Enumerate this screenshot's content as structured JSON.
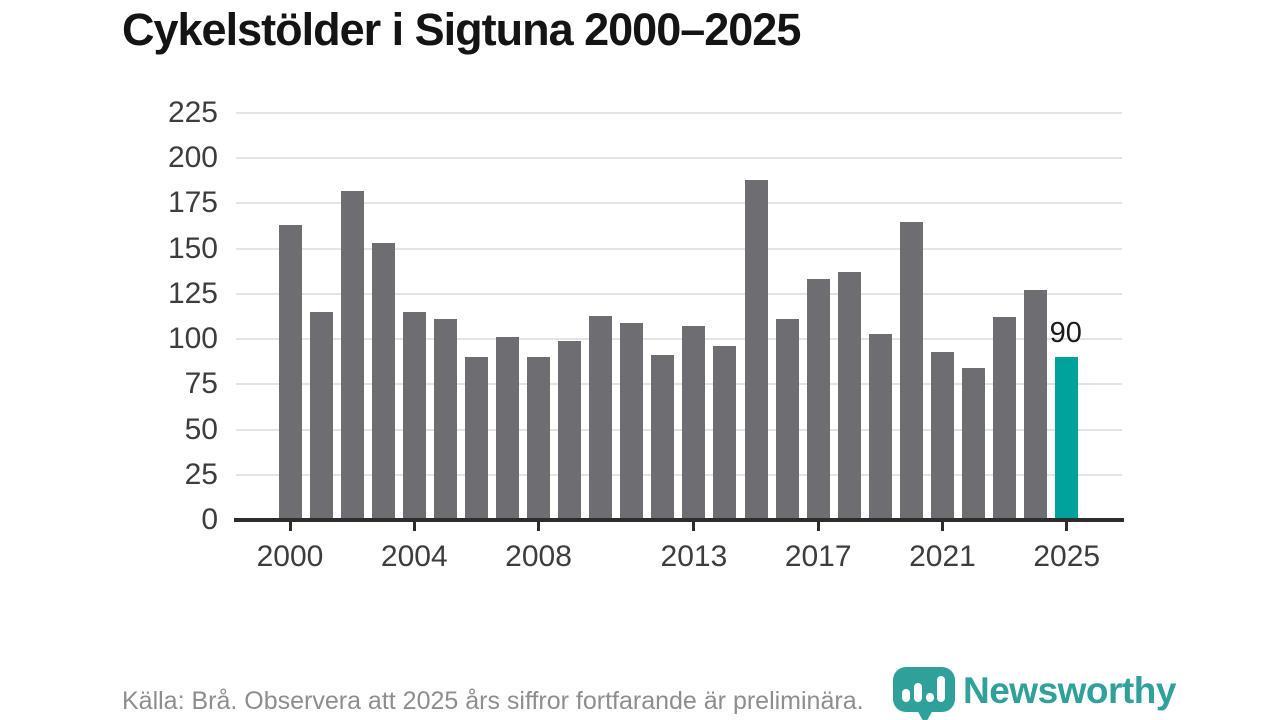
{
  "title": "Cykelstölder i Sigtuna 2000–2025",
  "footer": {
    "source_note": "Källa: Brå. Observera att 2025 års siffror fortfarande är preliminära."
  },
  "branding": {
    "wordmark": "Newsworthy",
    "logo_icon": "bar-chart-speech-bubble-icon",
    "brand_color": "#2fa09a"
  },
  "colors": {
    "bar_gray": "#6d6d72",
    "bar_highlight_teal": "#00a39b",
    "gridline": "#e4e4e4",
    "axis": "#2d2d2d",
    "title_text": "#141414",
    "tick_text": "#3d3d3d",
    "footer_text": "#8e8e8e"
  },
  "chart_data": {
    "type": "bar",
    "title": "Cykelstölder i Sigtuna 2000–2025",
    "xlabel": "",
    "ylabel": "",
    "categories": [
      "2000",
      "2001",
      "2002",
      "2003",
      "2004",
      "2005",
      "2006",
      "2007",
      "2008",
      "2009",
      "2010",
      "2011",
      "2012",
      "2013",
      "2014",
      "2015",
      "2016",
      "2017",
      "2018",
      "2019",
      "2020",
      "2021",
      "2022",
      "2023",
      "2024",
      "2025"
    ],
    "values": [
      163,
      115,
      182,
      153,
      115,
      111,
      90,
      101,
      90,
      99,
      113,
      109,
      91,
      107,
      96,
      188,
      111,
      133,
      137,
      103,
      165,
      93,
      84,
      112,
      127,
      90
    ],
    "highlight_index": 25,
    "highlight_label": "90",
    "x_tick_labels": [
      "2000",
      "2004",
      "2008",
      "2013",
      "2017",
      "2021",
      "2025"
    ],
    "x_tick_years": [
      2000,
      2004,
      2008,
      2013,
      2017,
      2021,
      2025
    ],
    "y_ticks": [
      0,
      25,
      50,
      75,
      100,
      125,
      150,
      175,
      200,
      225
    ],
    "ylim": [
      0,
      225
    ],
    "grid": "horizontal",
    "legend": "none",
    "bar_color": "#6d6d72",
    "highlight_color": "#00a39b"
  }
}
